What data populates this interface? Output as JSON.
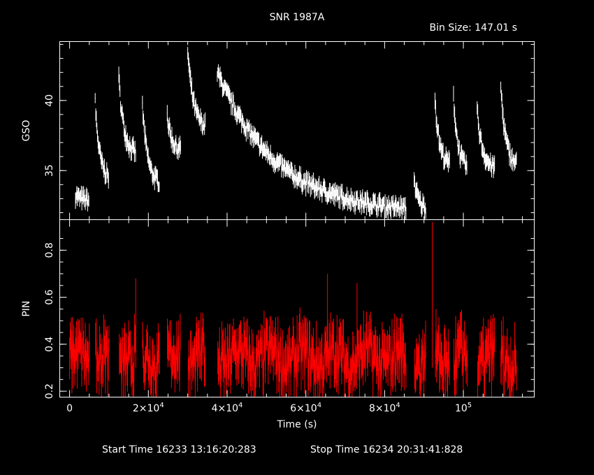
{
  "title": "SNR 1987A",
  "bin_size_label": "Bin Size:  147.01  s",
  "footer": {
    "start": "Start Time 16233 13:16:20:283",
    "stop": "Stop Time 16234 20:31:41:828"
  },
  "colors": {
    "background": "#000000",
    "axes": "#ffffff",
    "gso": "#ffffff",
    "pin": "#ff0000"
  },
  "chart_data": [
    {
      "type": "line",
      "ylabel": "GSO",
      "xlim": [
        -2500,
        118000
      ],
      "ylim": [
        31.5,
        44.2
      ],
      "yticks": [
        {
          "v": 35,
          "label": "35"
        },
        {
          "v": 40,
          "label": "40"
        }
      ],
      "segments": [
        {
          "x": [
            1500,
            5000
          ],
          "y": [
            33.3,
            32.9
          ]
        },
        {
          "x": [
            6500,
            10000
          ],
          "y": [
            39.8,
            34.6
          ]
        },
        {
          "x": [
            12500,
            16800
          ],
          "y": [
            41.5,
            36.3
          ]
        },
        {
          "x": [
            18500,
            22800
          ],
          "y": [
            39.5,
            34.2
          ]
        },
        {
          "x": [
            24800,
            28200
          ],
          "y": [
            39.0,
            36.5
          ]
        },
        {
          "x": [
            30000,
            34500
          ],
          "y": [
            43.5,
            38.2
          ]
        },
        {
          "x": [
            37500,
            85500
          ],
          "y": [
            42.0,
            32.3
          ]
        },
        {
          "x": [
            87500,
            90500
          ],
          "y": [
            34.4,
            32.4
          ]
        },
        {
          "x": [
            92800,
            96500
          ],
          "y": [
            40.0,
            35.5
          ]
        },
        {
          "x": [
            97500,
            101000
          ],
          "y": [
            40.3,
            35.3
          ]
        },
        {
          "x": [
            103500,
            108000
          ],
          "y": [
            39.2,
            35.2
          ]
        },
        {
          "x": [
            109500,
            113500
          ],
          "y": [
            41.0,
            35.5
          ]
        }
      ]
    },
    {
      "type": "line",
      "xlabel": "Time (s)",
      "ylabel": "PIN",
      "xlim": [
        -2500,
        118000
      ],
      "ylim": [
        0.175,
        0.93
      ],
      "yticks": [
        {
          "v": 0.2,
          "label": "0.2"
        },
        {
          "v": 0.4,
          "label": "0.4"
        },
        {
          "v": 0.6,
          "label": "0.6"
        },
        {
          "v": 0.8,
          "label": "0.8"
        }
      ],
      "mean": 0.34,
      "spikes": [
        {
          "x": 92100,
          "y": 0.92
        },
        {
          "x": 65500,
          "y": 0.7
        },
        {
          "x": 16800,
          "y": 0.68
        },
        {
          "x": 73000,
          "y": 0.66
        }
      ],
      "gaps": [
        [
          5000,
          6500
        ],
        [
          10000,
          12500
        ],
        [
          16800,
          18500
        ],
        [
          22800,
          24800
        ],
        [
          28200,
          30000
        ],
        [
          34500,
          37500
        ],
        [
          85500,
          87500
        ],
        [
          90500,
          92800
        ],
        [
          96500,
          97500
        ],
        [
          101000,
          103500
        ],
        [
          108000,
          109500
        ]
      ]
    }
  ],
  "xticks": [
    {
      "v": 0,
      "label": "0"
    },
    {
      "v": 20000,
      "base": "2×10",
      "exp": "4"
    },
    {
      "v": 40000,
      "base": "4×10",
      "exp": "4"
    },
    {
      "v": 60000,
      "base": "6×10",
      "exp": "4"
    },
    {
      "v": 80000,
      "base": "8×10",
      "exp": "4"
    },
    {
      "v": 100000,
      "base": "10",
      "exp": "5"
    }
  ]
}
